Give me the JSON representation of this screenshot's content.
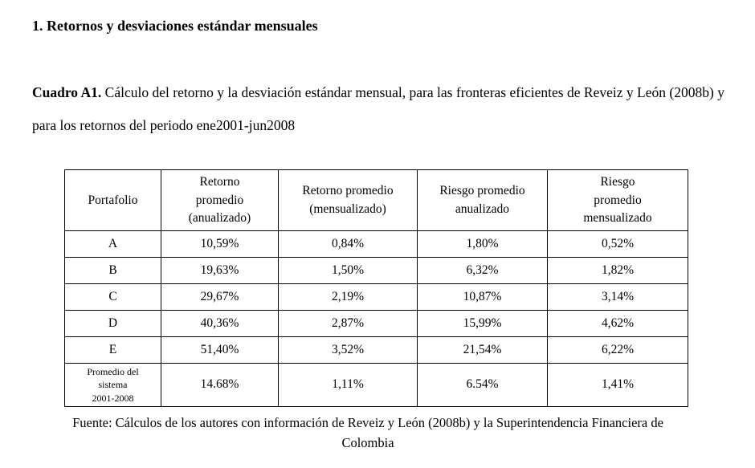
{
  "document": {
    "section_heading": "1. Retornos y desviaciones estándar mensuales",
    "caption": {
      "label": "Cuadro A1.",
      "text": " Cálculo del retorno y la desviación estándar mensual, para las  fronteras eficientes de Reveiz y León (2008b) y para los retornos del periodo ene2001-jun2008"
    },
    "source_note": "Fuente: Cálculos de los autores con información de Reveiz y León (2008b) y la Superintendencia Financiera de Colombia"
  },
  "table": {
    "headers": [
      "Portafolio",
      "Retorno\npromedio\n(anualizado)",
      "Retorno promedio\n(mensualizado)",
      "Riesgo promedio\nanualizado",
      "Riesgo\npromedio\nmensualizado"
    ],
    "rows": [
      [
        "A",
        "10,59%",
        "0,84%",
        "1,80%",
        "0,52%"
      ],
      [
        "B",
        "19,63%",
        "1,50%",
        "6,32%",
        "1,82%"
      ],
      [
        "C",
        "29,67%",
        "2,19%",
        "10,87%",
        "3,14%"
      ],
      [
        "D",
        "40,36%",
        "2,87%",
        "15,99%",
        "4,62%"
      ],
      [
        "E",
        "51,40%",
        "3,52%",
        "21,54%",
        "6,22%"
      ],
      [
        "Promedio del\nsistema\n2001-2008",
        "14.68%",
        "1,11%",
        "6.54%",
        "1,41%"
      ]
    ]
  }
}
